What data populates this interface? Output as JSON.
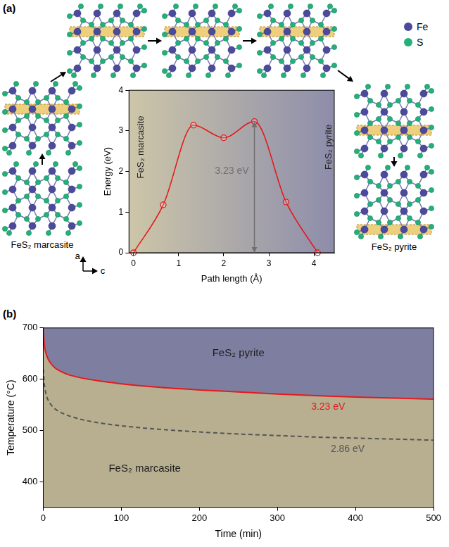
{
  "figure": {
    "atom_legend": [
      {
        "name": "Fe",
        "color": "#4b4a9c"
      },
      {
        "name": "S",
        "color": "#23b07a"
      }
    ],
    "structure_labels": {
      "start": "FeS₂ marcasite",
      "end": "FeS₂ pyrite"
    },
    "crystal_axes": [
      "a",
      "c"
    ]
  },
  "chart_data": [
    {
      "panel": "(a)",
      "type": "line",
      "x": [
        0,
        0.66,
        1.33,
        2.0,
        2.68,
        3.38,
        4.08
      ],
      "values": [
        0,
        1.18,
        3.14,
        2.83,
        3.23,
        1.25,
        0
      ],
      "color": "#e41a1c",
      "marker": "circle",
      "x_label": "Path length (Å)",
      "y_label": "Energy (eV)",
      "xlim": [
        -0.1,
        4.45
      ],
      "ylim": [
        0,
        4
      ],
      "xticks": [
        0,
        1,
        2,
        3,
        4
      ],
      "yticks": [
        0,
        1,
        2,
        3,
        4
      ],
      "grid": false,
      "background_colors": [
        "#cdc6a8",
        "#8d8dab"
      ],
      "side_labels": [
        {
          "text": "FeS₂ marcasite",
          "x": 0.17,
          "y": 2.6
        },
        {
          "text": "FeS₂ pyrite",
          "x": 4.33,
          "y": 2.6
        }
      ],
      "annotations": [
        {
          "text": "3.23 eV",
          "x": 2.68,
          "y": 2.0,
          "from": 0,
          "to": 3.23,
          "color": "#707070"
        }
      ]
    },
    {
      "panel": "(b)",
      "type": "line",
      "x": [
        0,
        1,
        2,
        4,
        6,
        10,
        15,
        20,
        30,
        50,
        75,
        100,
        150,
        200,
        250,
        300,
        350,
        400,
        450,
        500
      ],
      "series": [
        {
          "name": "3.23 eV",
          "color": "#e41a1c",
          "line_style": "solid",
          "values": [
            700,
            672,
            660,
            648,
            640,
            630,
            622,
            617,
            610,
            602,
            596,
            591,
            584,
            579,
            575,
            571,
            568,
            565,
            563,
            561
          ],
          "label_x": 365,
          "label_y": 545
        },
        {
          "name": "2.86 eV",
          "color": "#555555",
          "line_style": "dashed",
          "values": [
            620,
            596,
            583,
            568,
            560,
            550,
            542,
            537,
            530,
            521,
            514,
            509,
            502,
            497,
            493,
            490,
            487,
            485,
            483,
            481
          ],
          "label_x": 390,
          "label_y": 463
        }
      ],
      "x_label": "Time (min)",
      "y_label": "Temperature (°C)",
      "xlim": [
        0,
        500
      ],
      "ylim": [
        350,
        700
      ],
      "xticks": [
        0,
        100,
        200,
        300,
        400,
        500
      ],
      "yticks": [
        400,
        500,
        600,
        700
      ],
      "grid": false,
      "regions": [
        {
          "text": "FeS₂ pyrite",
          "color": "#7e7fa0",
          "side": "above",
          "boundary": "3.23 eV",
          "x": 250,
          "y": 650
        },
        {
          "text": "FeS₂ marcasite",
          "color": "#b7af90",
          "side": "below",
          "boundary": "3.23 eV",
          "x": 130,
          "y": 425
        }
      ]
    }
  ]
}
